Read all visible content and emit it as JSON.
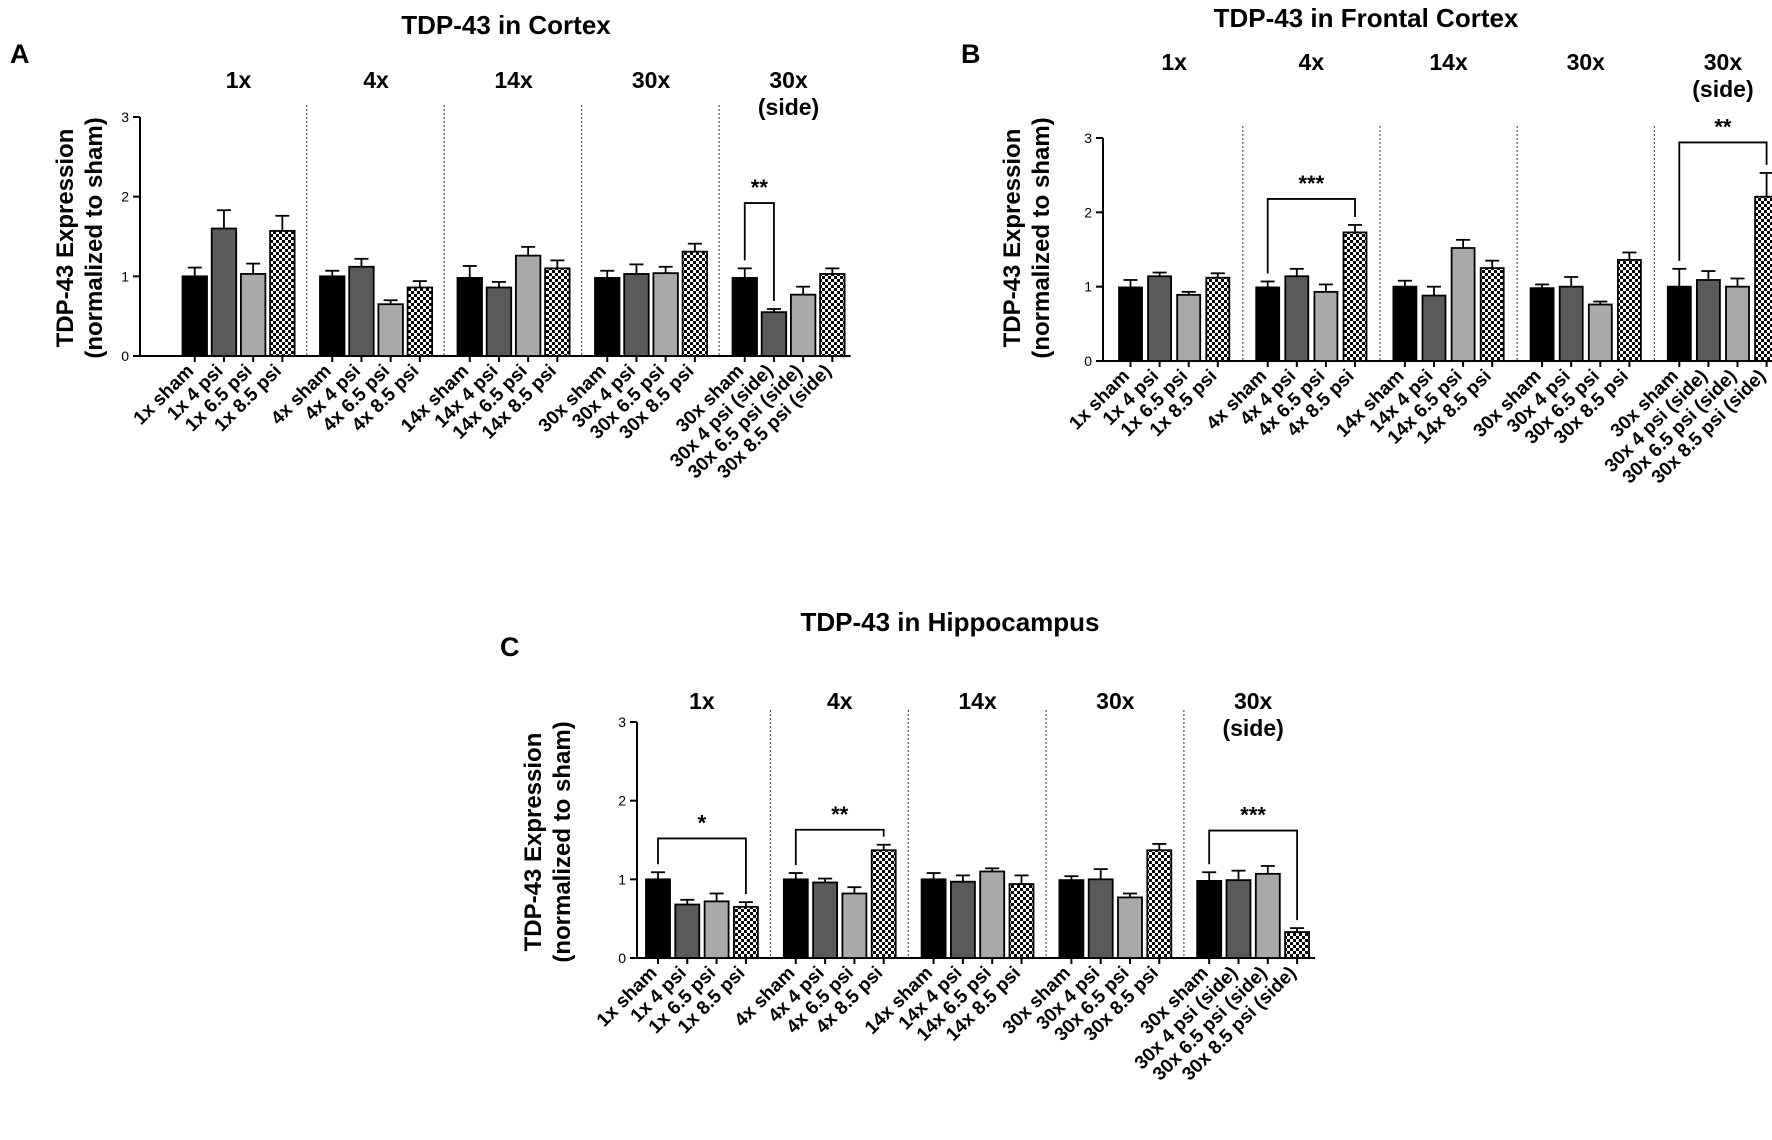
{
  "bar_styles": [
    {
      "fill": "#000000",
      "pattern": "none"
    },
    {
      "fill": "#5a5a5a",
      "pattern": "none"
    },
    {
      "fill": "#a9a9a9",
      "pattern": "none"
    },
    {
      "fill": "#ffffff",
      "pattern": "checker"
    }
  ],
  "chart_data": [
    {
      "id": "A",
      "panel_label": "A",
      "type": "bar",
      "title": "TDP-43 in Cortex",
      "ylabel": "TDP-43 Expression\n(normalized to sham)",
      "ylim": [
        0,
        3
      ],
      "yticks": [
        "0",
        "1",
        "2",
        "3"
      ],
      "groups": [
        "1x",
        "4x",
        "14x",
        "30x",
        "30x\n(side)"
      ],
      "categories": [
        "1x sham",
        "1x 4 psi",
        "1x 6.5 psi",
        "1x 8.5 psi",
        "4x sham",
        "4x 4 psi",
        "4x 6.5 psi",
        "4x 8.5 psi",
        "14x sham",
        "14x 4 psi",
        "14x 6.5 psi",
        "14x 8.5 psi",
        "30x sham",
        "30x 4 psi",
        "30x 6.5 psi",
        "30x 8.5 psi",
        "30x sham",
        "30x 4 psi (side)",
        "30x 6.5 psi (side)",
        "30x 8.5 psi (side)"
      ],
      "values": [
        1.0,
        1.6,
        1.03,
        1.57,
        1.0,
        1.12,
        0.65,
        0.86,
        0.98,
        0.86,
        1.26,
        1.1,
        0.98,
        1.03,
        1.04,
        1.31,
        0.98,
        0.55,
        0.77,
        1.03
      ],
      "errors": [
        0.11,
        0.23,
        0.13,
        0.19,
        0.07,
        0.1,
        0.05,
        0.08,
        0.15,
        0.07,
        0.11,
        0.1,
        0.09,
        0.12,
        0.08,
        0.1,
        0.12,
        0.04,
        0.1,
        0.07
      ],
      "significance": [
        {
          "from": 16,
          "to": 17,
          "label": "**",
          "y": 1.92
        }
      ]
    },
    {
      "id": "B",
      "panel_label": "B",
      "type": "bar",
      "title": "TDP-43 in Frontal Cortex",
      "ylabel": "TDP-43 Expression\n(normalized to sham)",
      "ylim": [
        0,
        3
      ],
      "yticks": [
        "0",
        "1",
        "2",
        "3"
      ],
      "groups": [
        "1x",
        "4x",
        "14x",
        "30x",
        "30x\n(side)"
      ],
      "categories": [
        "1x sham",
        "1x 4 psi",
        "1x 6.5 psi",
        "1x 8.5 psi",
        "4x sham",
        "4x 4 psi",
        "4x 6.5 psi",
        "4x 8.5 psi",
        "14x sham",
        "14x 4 psi",
        "14x 6.5 psi",
        "14x 8.5 psi",
        "30x sham",
        "30x 4 psi",
        "30x 6.5 psi",
        "30x 8.5 psi",
        "30x sham",
        "30x 4 psi (side)",
        "30x 6.5 psi (side)",
        "30x 8.5 psi (side)"
      ],
      "values": [
        0.99,
        1.14,
        0.89,
        1.12,
        0.99,
        1.14,
        0.93,
        1.73,
        1.0,
        0.88,
        1.52,
        1.25,
        0.98,
        1.0,
        0.76,
        1.36,
        1.0,
        1.09,
        1.0,
        2.21
      ],
      "errors": [
        0.1,
        0.05,
        0.04,
        0.06,
        0.08,
        0.1,
        0.1,
        0.1,
        0.08,
        0.12,
        0.11,
        0.1,
        0.05,
        0.13,
        0.04,
        0.1,
        0.24,
        0.12,
        0.11,
        0.32
      ],
      "significance": [
        {
          "from": 4,
          "to": 7,
          "label": "***",
          "y": 2.18
        },
        {
          "from": 16,
          "to": 19,
          "label": "**",
          "y": 2.94
        }
      ]
    },
    {
      "id": "C",
      "panel_label": "C",
      "type": "bar",
      "title": "TDP-43 in Hippocampus",
      "ylabel": "TDP-43 Expression\n(normalized to sham)",
      "ylim": [
        0,
        3
      ],
      "yticks": [
        "0",
        "1",
        "2",
        "3"
      ],
      "groups": [
        "1x",
        "4x",
        "14x",
        "30x",
        "30x\n(side)"
      ],
      "categories": [
        "1x sham",
        "1x 4 psi",
        "1x 6.5 psi",
        "1x 8.5 psi",
        "4x sham",
        "4x 4 psi",
        "4x 6.5 psi",
        "4x 8.5 psi",
        "14x sham",
        "14x 4 psi",
        "14x 6.5 psi",
        "14x 8.5 psi",
        "30x sham",
        "30x 4 psi",
        "30x 6.5 psi",
        "30x 8.5 psi",
        "30x sham",
        "30x 4 psi (side)",
        "30x 6.5 psi (side)",
        "30x 8.5 psi (side)"
      ],
      "values": [
        1.0,
        0.68,
        0.72,
        0.65,
        1.0,
        0.96,
        0.82,
        1.37,
        1.0,
        0.97,
        1.1,
        0.94,
        0.99,
        1.0,
        0.77,
        1.37,
        0.98,
        0.99,
        1.07,
        0.33
      ],
      "errors": [
        0.09,
        0.06,
        0.1,
        0.06,
        0.08,
        0.05,
        0.08,
        0.07,
        0.08,
        0.08,
        0.04,
        0.11,
        0.05,
        0.13,
        0.05,
        0.08,
        0.11,
        0.12,
        0.1,
        0.05
      ],
      "significance": [
        {
          "from": 0,
          "to": 3,
          "label": "*",
          "y": 1.52
        },
        {
          "from": 4,
          "to": 7,
          "label": "**",
          "y": 1.63
        },
        {
          "from": 16,
          "to": 19,
          "label": "***",
          "y": 1.62
        }
      ]
    }
  ]
}
